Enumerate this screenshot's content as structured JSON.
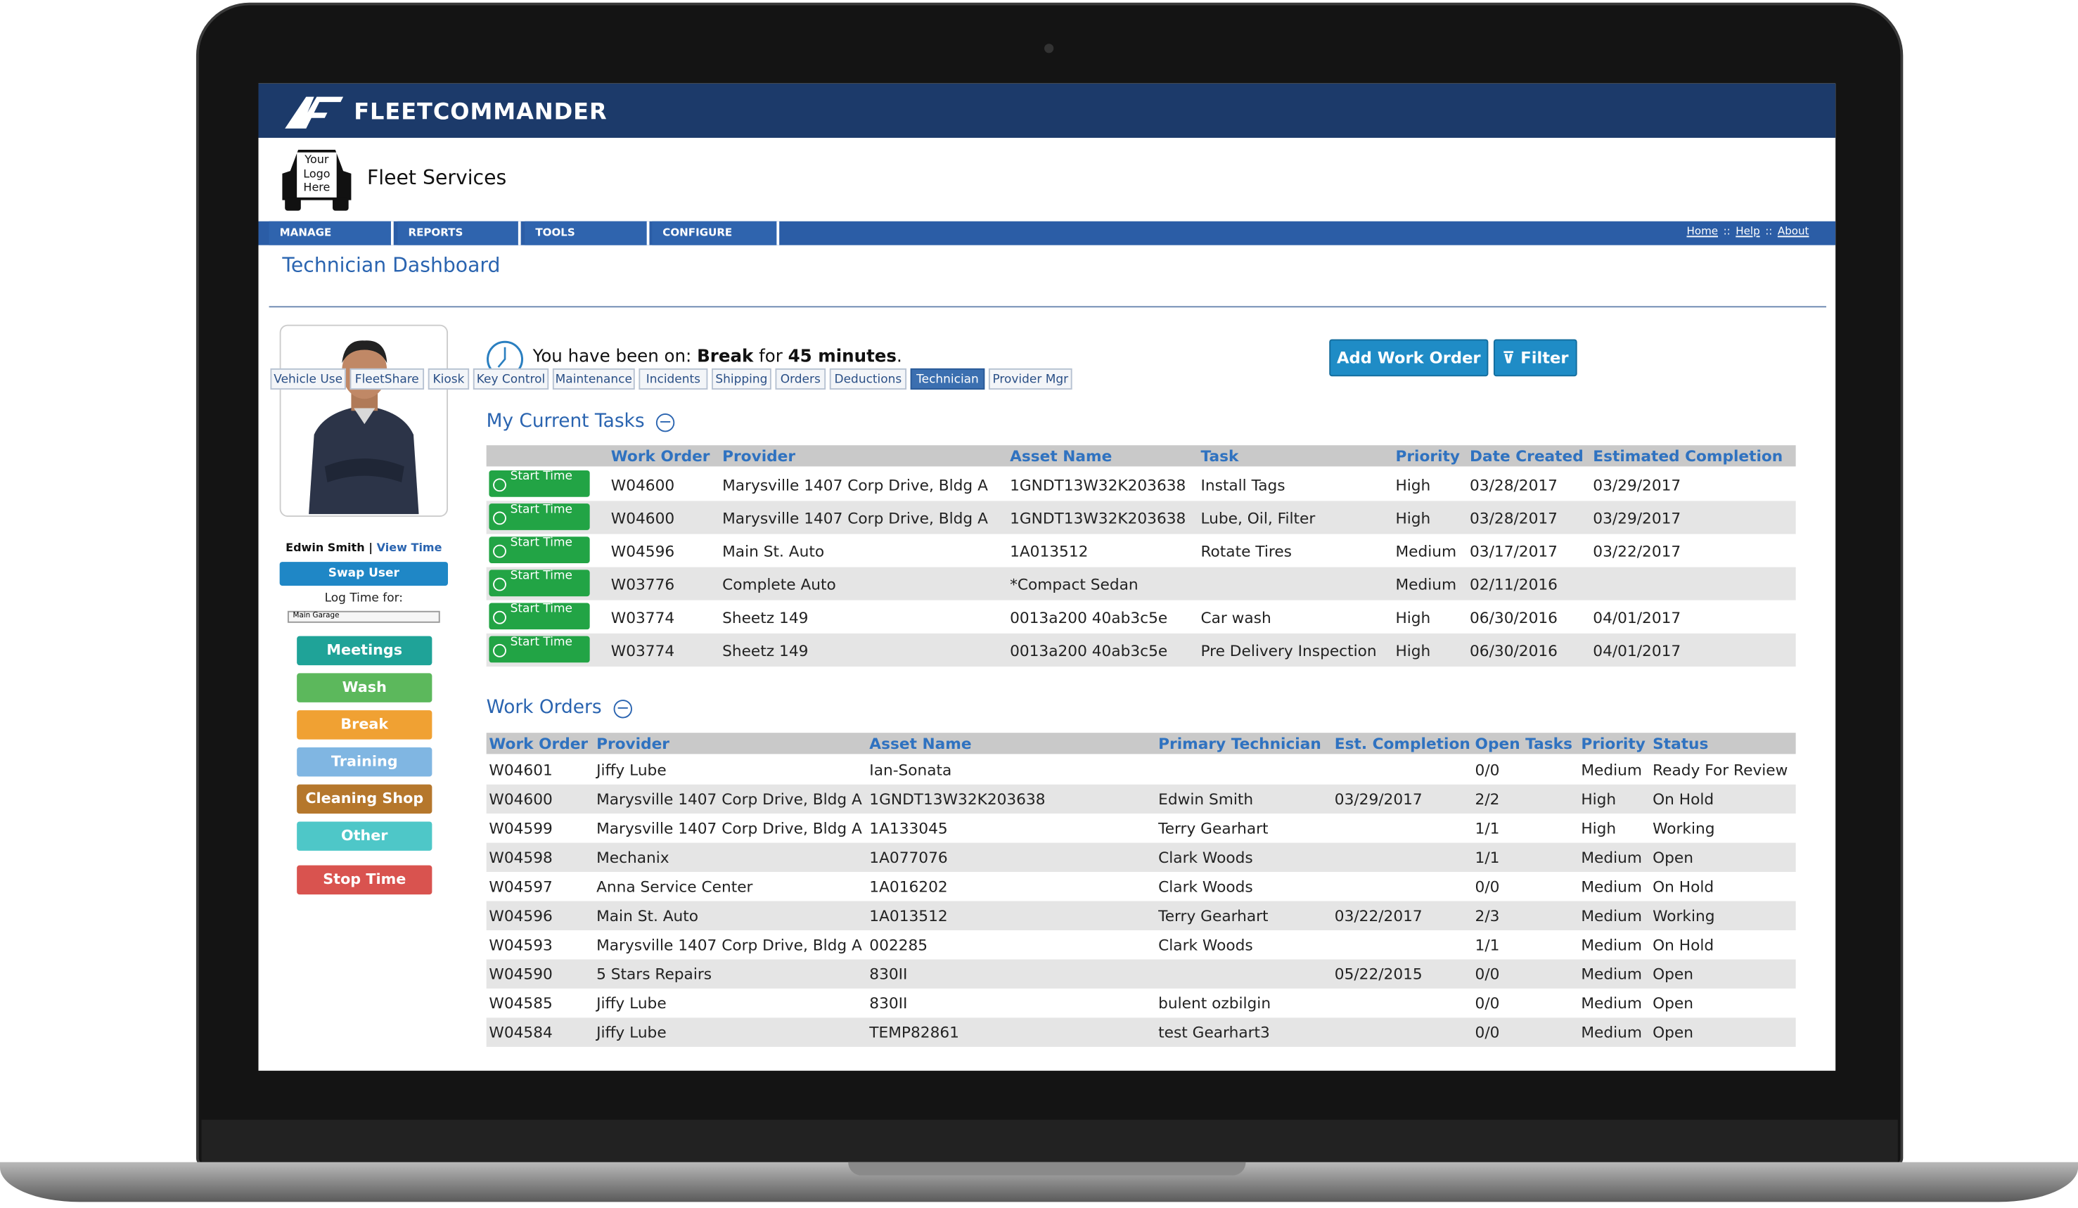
{
  "brand": "FLEETCOMMANDER",
  "logo_text": [
    "Your",
    "Logo",
    "Here"
  ],
  "org_name": "Fleet Services",
  "nav": [
    "MANAGE",
    "REPORTS",
    "TOOLS",
    "CONFIGURE"
  ],
  "top_links": [
    "Home",
    "Help",
    "About"
  ],
  "top_link_separator": "::",
  "page_title": "Technician Dashboard",
  "tabs": [
    "Vehicle Use",
    "FleetShare",
    "Kiosk",
    "Key Control",
    "Maintenance",
    "Incidents",
    "Shipping",
    "Orders",
    "Deductions",
    "Technician",
    "Provider Mgr"
  ],
  "active_tab": 9,
  "user": {
    "name": "Edwin Smith",
    "divider": "|",
    "view_time": "View Time"
  },
  "swap_user": "Swap User",
  "log_time_label": "Log Time for:",
  "log_time_select": "Main Garage",
  "time_buttons": [
    {
      "label": "Meetings",
      "color": "#1fa398"
    },
    {
      "label": "Wash",
      "color": "#5cb85c"
    },
    {
      "label": "Break",
      "color": "#f0a133"
    },
    {
      "label": "Training",
      "color": "#80b6e2"
    },
    {
      "label": "Cleaning Shop",
      "color": "#b5772c"
    },
    {
      "label": "Other",
      "color": "#4ec7c8"
    }
  ],
  "stop_time": {
    "label": "Stop Time",
    "color": "#d9534f"
  },
  "status": {
    "prefix": "You have been on:",
    "state": "Break",
    "middle": "for",
    "duration": "45 minutes",
    "suffix": "."
  },
  "actions": [
    "Add Work Order",
    "Filter"
  ],
  "current_tasks": {
    "title": "My Current Tasks",
    "button": "Start Time",
    "columns": [
      "Work Order",
      "Provider",
      "Asset Name",
      "Task",
      "Priority",
      "Date Created",
      "Estimated Completion"
    ],
    "rows": [
      [
        "W04600",
        "Marysville 1407 Corp Drive, Bldg A",
        "1GNDT13W32K203638",
        "Install Tags",
        "High",
        "03/28/2017",
        "03/29/2017"
      ],
      [
        "W04600",
        "Marysville 1407 Corp Drive, Bldg A",
        "1GNDT13W32K203638",
        "Lube, Oil, Filter",
        "High",
        "03/28/2017",
        "03/29/2017"
      ],
      [
        "W04596",
        "Main St. Auto",
        "1A013512",
        "Rotate Tires",
        "Medium",
        "03/17/2017",
        "03/22/2017"
      ],
      [
        "W03776",
        "Complete Auto",
        "*Compact Sedan",
        null,
        "Medium",
        "02/11/2016",
        null
      ],
      [
        "W03774",
        "Sheetz 149",
        "0013a200 40ab3c5e",
        "Car wash",
        "High",
        "06/30/2016",
        "04/01/2017"
      ],
      [
        "W03774",
        "Sheetz 149",
        "0013a200 40ab3c5e",
        "Pre Delivery Inspection",
        "High",
        "06/30/2016",
        "04/01/2017"
      ]
    ]
  },
  "work_orders": {
    "title": "Work Orders",
    "columns": [
      "Work Order",
      "Provider",
      "Asset Name",
      "Primary Technician",
      "Est. Completion",
      "Open Tasks",
      "Priority",
      "Status"
    ],
    "rows": [
      [
        "W04601",
        "Jiffy Lube",
        "Ian-Sonata",
        null,
        null,
        "0/0",
        "Medium",
        "Ready For Review"
      ],
      [
        "W04600",
        "Marysville 1407 Corp Drive, Bldg A",
        "1GNDT13W32K203638",
        "Edwin Smith",
        "03/29/2017",
        "2/2",
        "High",
        "On Hold"
      ],
      [
        "W04599",
        "Marysville 1407 Corp Drive, Bldg A",
        "1A133045",
        "Terry Gearhart",
        null,
        "1/1",
        "High",
        "Working"
      ],
      [
        "W04598",
        "Mechanix",
        "1A077076",
        "Clark Woods",
        null,
        "1/1",
        "Medium",
        "Open"
      ],
      [
        "W04597",
        "Anna Service Center",
        "1A016202",
        "Clark Woods",
        null,
        "0/0",
        "Medium",
        "On Hold"
      ],
      [
        "W04596",
        "Main St. Auto",
        "1A013512",
        "Terry Gearhart",
        "03/22/2017",
        "2/3",
        "Medium",
        "Working"
      ],
      [
        "W04593",
        "Marysville 1407 Corp Drive, Bldg A",
        "002285",
        "Clark Woods",
        null,
        "1/1",
        "Medium",
        "On Hold"
      ],
      [
        "W04590",
        "5 Stars Repairs",
        "830II",
        null,
        "05/22/2015",
        "0/0",
        "Medium",
        "Open"
      ],
      [
        "W04585",
        "Jiffy Lube",
        "830II",
        "bulent ozbilgin",
        null,
        "0/0",
        "Medium",
        "Open"
      ],
      [
        "W04584",
        "Jiffy Lube",
        "TEMP82861",
        "test Gearhart3",
        null,
        "0/0",
        "Medium",
        "Open"
      ]
    ]
  }
}
